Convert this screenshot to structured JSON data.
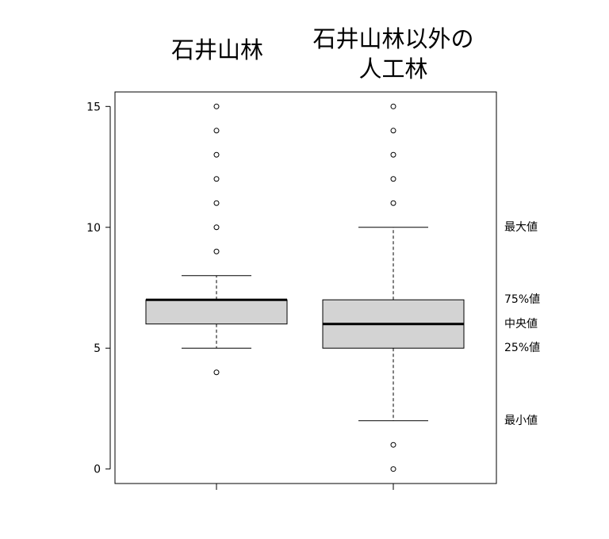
{
  "chart_data": {
    "type": "box",
    "ylim": [
      -0.6,
      15.6
    ],
    "yticks": [
      "0",
      "5",
      "10",
      "15"
    ],
    "groups": [
      {
        "name_lines": [
          "石井山林"
        ],
        "whisker_low": 5,
        "q1": 6,
        "median": 7,
        "q3": 7,
        "whisker_high": 8,
        "outliers": [
          4,
          9,
          10,
          11,
          12,
          13,
          14,
          15
        ]
      },
      {
        "name_lines": [
          "石井山林以外の",
          "人工林"
        ],
        "whisker_low": 2,
        "q1": 5,
        "median": 6,
        "q3": 7,
        "whisker_high": 10,
        "outliers": [
          0,
          1,
          11,
          12,
          13,
          14,
          15
        ]
      }
    ],
    "annotations": [
      {
        "text": "最大値",
        "y": 10
      },
      {
        "text": "75%値",
        "y": 7
      },
      {
        "text": "中央値",
        "y": 6
      },
      {
        "text": "25%値",
        "y": 5
      },
      {
        "text": "最小値",
        "y": 2
      }
    ],
    "box_fill": "#d3d3d3",
    "line_color": "#000000"
  }
}
